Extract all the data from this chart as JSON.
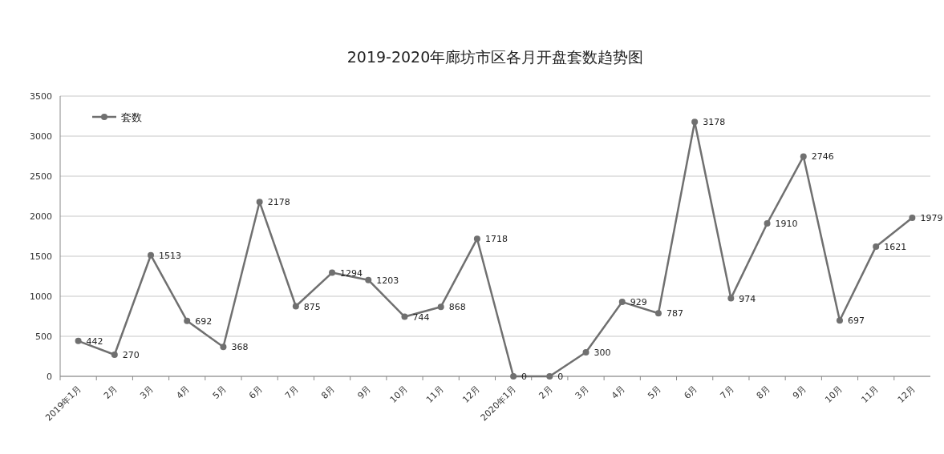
{
  "chart_data": {
    "type": "line",
    "title": "2019-2020年廊坊市区各月开盘套数趋势图",
    "categories": [
      "2019年1月",
      "2月",
      "3月",
      "4月",
      "5月",
      "6月",
      "7月",
      "8月",
      "9月",
      "10月",
      "11月",
      "12月",
      "2020年1月",
      "2月",
      "3月",
      "4月",
      "5月",
      "6月",
      "7月",
      "8月",
      "9月",
      "10月",
      "11月",
      "12月"
    ],
    "series": [
      {
        "name": "套数",
        "color": "#707070",
        "values": [
          442,
          270,
          1513,
          692,
          368,
          2178,
          875,
          1294,
          1203,
          744,
          868,
          1718,
          0,
          0,
          300,
          929,
          787,
          3178,
          974,
          1910,
          2746,
          697,
          1621,
          1979
        ]
      }
    ],
    "ylim": [
      0,
      3500
    ],
    "yticks": [
      0,
      500,
      1000,
      1500,
      2000,
      2500,
      3000,
      3500
    ],
    "grid": "y",
    "legend": "top left",
    "marker": "circle",
    "data_labels": true
  }
}
